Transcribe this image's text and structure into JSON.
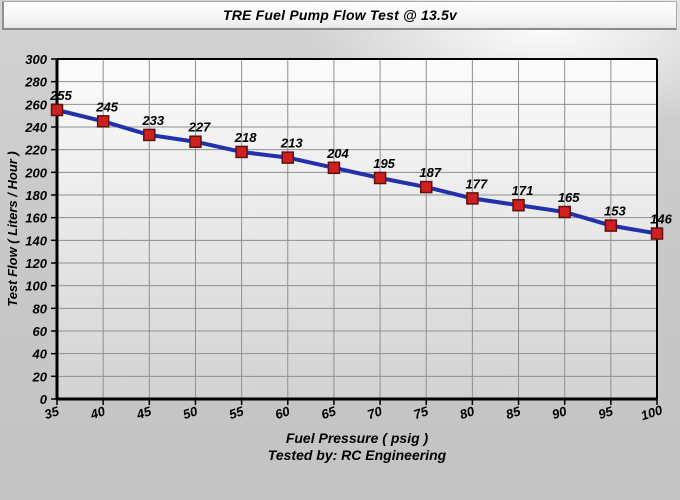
{
  "title": "TRE Fuel Pump Flow Test @ 13.5v",
  "chart_data": {
    "type": "line",
    "title": "TRE Fuel Pump Flow Test @ 13.5v",
    "xlabel": "Fuel Pressure ( psig )",
    "ylabel": "Test Flow ( Liters / Hour )",
    "footer": "Tested by: RC Engineering",
    "x": [
      35,
      40,
      45,
      50,
      55,
      60,
      65,
      70,
      75,
      80,
      85,
      90,
      95,
      100
    ],
    "values": [
      255,
      245,
      233,
      227,
      218,
      213,
      204,
      195,
      187,
      177,
      171,
      165,
      153,
      146
    ],
    "series_name": "Test Flow",
    "xlim": [
      35,
      100
    ],
    "ylim": [
      0,
      300
    ],
    "x_tick_step": 5,
    "y_tick_step": 20,
    "grid": true,
    "data_labels": true,
    "legend": "none",
    "colors": {
      "line": "#2230aa",
      "marker_fill": "#cf2020",
      "marker_border": "#5f1111",
      "grid": "#8f8f8f",
      "axis": "#000000",
      "label_text": "#000000"
    }
  }
}
